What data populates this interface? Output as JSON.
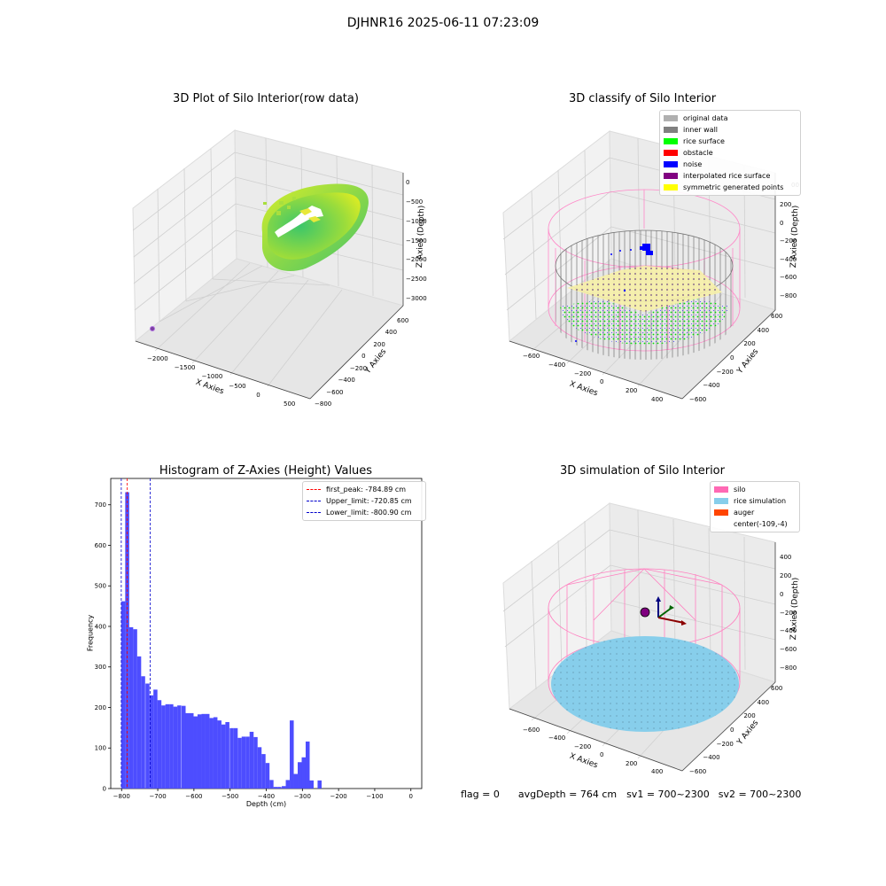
{
  "figure": {
    "suptitle": "DJHNR16 2025-06-11 07:23:09",
    "status": {
      "flag": "flag = 0",
      "avg_depth": "avgDepth = 764 cm",
      "sv1": "sv1 = 700~2300",
      "sv2": "sv2 = 700~2300"
    }
  },
  "colors": {
    "original": "#b0b0b0",
    "inner_wall": "#808080",
    "rice_surface": "#00ff00",
    "obstacle": "#ff0000",
    "noise": "#0000ff",
    "interpolated": "#800080",
    "symmetric": "#ffff00",
    "silo": "#ff69b4",
    "rice_sim": "#87ceeb",
    "auger": "#ff4500",
    "hist_bar": "#4d4dff"
  },
  "chart_data": [
    {
      "type": "scatter",
      "title": "3D Plot of Silo Interior(row data)",
      "xlabel": "X Axies",
      "ylabel": "Y Axies",
      "zlabel": "Z Axies (Depth)",
      "x_ticks": [
        "−2000",
        "−1500",
        "−1000",
        "−500",
        "0",
        "500"
      ],
      "y_ticks": [
        "−800",
        "−600",
        "−400",
        "−200",
        "0",
        "200",
        "400",
        "600"
      ],
      "z_ticks": [
        "−3000",
        "−2500",
        "−2000",
        "−1500",
        "−1000",
        "−500",
        "0"
      ]
    },
    {
      "type": "scatter",
      "title": "3D classify of Silo Interior",
      "xlabel": "X Axies",
      "ylabel": "Y Axies",
      "zlabel": "Z Axies (Depth)",
      "x_ticks": [
        "−600",
        "−400",
        "−200",
        "0",
        "200",
        "400"
      ],
      "y_ticks": [
        "−600",
        "−400",
        "−200",
        "0",
        "200",
        "400",
        "600"
      ],
      "z_ticks": [
        "−800",
        "−600",
        "−400",
        "−200",
        "0",
        "200"
      ],
      "z_tick_partial": "00",
      "legend": [
        {
          "label": "original data",
          "color": "#b0b0b0"
        },
        {
          "label": "inner wall",
          "color": "#808080"
        },
        {
          "label": "rice surface",
          "color": "#00ff00"
        },
        {
          "label": "obstacle",
          "color": "#ff0000"
        },
        {
          "label": "noise",
          "color": "#0000ff"
        },
        {
          "label": "interpolated rice surface",
          "color": "#800080"
        },
        {
          "label": "symmetric generated points",
          "color": "#ffff00"
        }
      ]
    },
    {
      "type": "bar",
      "title": "Histogram of Z-Axies (Height) Values",
      "xlabel": "Depth (cm)",
      "ylabel": "Frequency",
      "xlim": [
        -830,
        30
      ],
      "ylim": [
        0,
        765
      ],
      "x_ticks": [
        -800,
        -700,
        -600,
        -500,
        -400,
        -300,
        -200,
        -100,
        0
      ],
      "x_tick_labels": [
        "−800",
        "−700",
        "−600",
        "−500",
        "−400",
        "−300",
        "−200",
        "−100",
        "0"
      ],
      "y_ticks": [
        0,
        100,
        200,
        300,
        400,
        500,
        600,
        700
      ],
      "y_tick_labels": [
        "0",
        "100",
        "200",
        "300",
        "400",
        "500",
        "600",
        "700"
      ],
      "bin_width": 11.07,
      "bins": [
        [
          -801,
          462
        ],
        [
          -790,
          731
        ],
        [
          -779,
          398
        ],
        [
          -768,
          393
        ],
        [
          -757,
          326
        ],
        [
          -746,
          277
        ],
        [
          -734,
          259
        ],
        [
          -723,
          230
        ],
        [
          -712,
          244
        ],
        [
          -701,
          218
        ],
        [
          -690,
          205
        ],
        [
          -679,
          208
        ],
        [
          -668,
          208
        ],
        [
          -657,
          202
        ],
        [
          -646,
          205
        ],
        [
          -634,
          204
        ],
        [
          -623,
          186
        ],
        [
          -612,
          186
        ],
        [
          -601,
          178
        ],
        [
          -590,
          183
        ],
        [
          -579,
          184
        ],
        [
          -568,
          184
        ],
        [
          -557,
          174
        ],
        [
          -546,
          176
        ],
        [
          -535,
          168
        ],
        [
          -524,
          158
        ],
        [
          -513,
          164
        ],
        [
          -501,
          149
        ],
        [
          -490,
          149
        ],
        [
          -479,
          125
        ],
        [
          -468,
          128
        ],
        [
          -457,
          128
        ],
        [
          -446,
          140
        ],
        [
          -435,
          127
        ],
        [
          -424,
          102
        ],
        [
          -413,
          85
        ],
        [
          -402,
          63
        ],
        [
          -391,
          21
        ],
        [
          -380,
          4
        ],
        [
          -369,
          4
        ],
        [
          -357,
          6
        ],
        [
          -346,
          21
        ],
        [
          -335,
          168
        ],
        [
          -324,
          36
        ],
        [
          -313,
          65
        ],
        [
          -302,
          77
        ],
        [
          -291,
          116
        ],
        [
          -280,
          20
        ],
        [
          -258,
          20
        ]
      ],
      "vlines": [
        {
          "label": "first_peak: -784.89 cm",
          "x": -784.89,
          "color": "#ff0000"
        },
        {
          "label": "Upper_limit: -720.85 cm",
          "x": -720.85,
          "color": "#0000cc"
        },
        {
          "label": "Lower_limit: -800.90 cm",
          "x": -800.9,
          "color": "#0000cc"
        }
      ],
      "legend_position": "upper-right"
    },
    {
      "type": "scatter",
      "title": "3D simulation of Silo Interior",
      "xlabel": "X Axies",
      "ylabel": "Y Axies",
      "zlabel": "Z Axies (Depth)",
      "x_ticks": [
        "−600",
        "−400",
        "−200",
        "0",
        "200",
        "400"
      ],
      "y_ticks": [
        "−600",
        "−400",
        "−200",
        "0",
        "200",
        "400",
        "600"
      ],
      "z_ticks": [
        "−800",
        "−600",
        "−400",
        "−200",
        "0",
        "200",
        "400"
      ],
      "legend": [
        {
          "label": "silo",
          "color": "#ff69b4"
        },
        {
          "label": "rice simulation",
          "color": "#87ceeb"
        },
        {
          "label": "auger",
          "color": "#ff4500"
        },
        {
          "label": "center(-109,-4)",
          "color": ""
        }
      ]
    }
  ]
}
